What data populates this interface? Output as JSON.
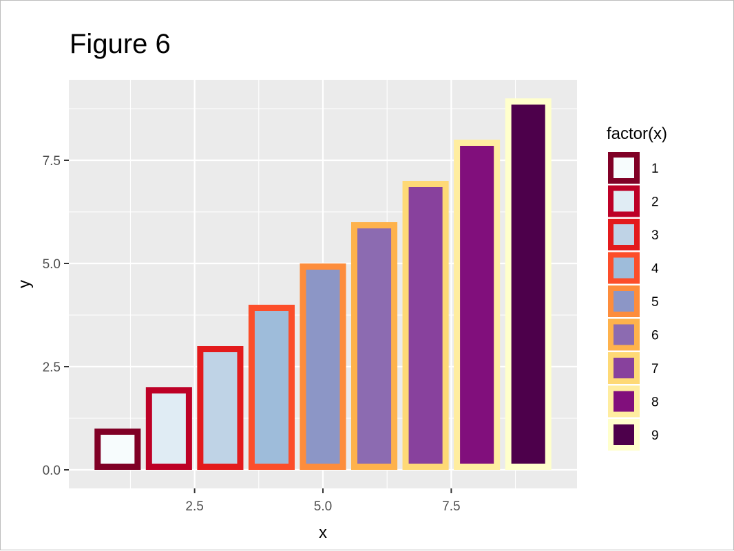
{
  "chart_data": {
    "type": "bar",
    "title": "Figure 6",
    "xlabel": "x",
    "ylabel": "y",
    "x": [
      1,
      2,
      3,
      4,
      5,
      6,
      7,
      8,
      9
    ],
    "values": [
      1,
      2,
      3,
      4,
      5,
      6,
      7,
      8,
      9
    ],
    "xlim": [
      0.05,
      9.95
    ],
    "ylim": [
      -0.45,
      9.45
    ],
    "x_ticks": [
      2.5,
      5.0,
      7.5
    ],
    "x_tick_labels": [
      "2.5",
      "5.0",
      "7.5"
    ],
    "y_ticks": [
      0,
      2.5,
      5,
      7.5
    ],
    "y_tick_labels": [
      "0.0",
      "2.5",
      "5.0",
      "7.5"
    ],
    "grid": true,
    "legend": {
      "title": "factor(x)",
      "position": "right",
      "labels": [
        "1",
        "2",
        "3",
        "4",
        "5",
        "6",
        "7",
        "8",
        "9"
      ]
    },
    "fill_colors": [
      "#f7fcfd",
      "#e0ecf4",
      "#bfd3e6",
      "#9ebcda",
      "#8c96c6",
      "#8c6bb1",
      "#88419d",
      "#810f7c",
      "#4d004b"
    ],
    "outline_colors": [
      "#800026",
      "#bd0026",
      "#e31a1c",
      "#fc4e2a",
      "#fd8d3c",
      "#feb24c",
      "#fed976",
      "#ffeda0",
      "#ffffcc"
    ],
    "panel_background": "#ebebeb",
    "grid_color": "#ffffff"
  }
}
